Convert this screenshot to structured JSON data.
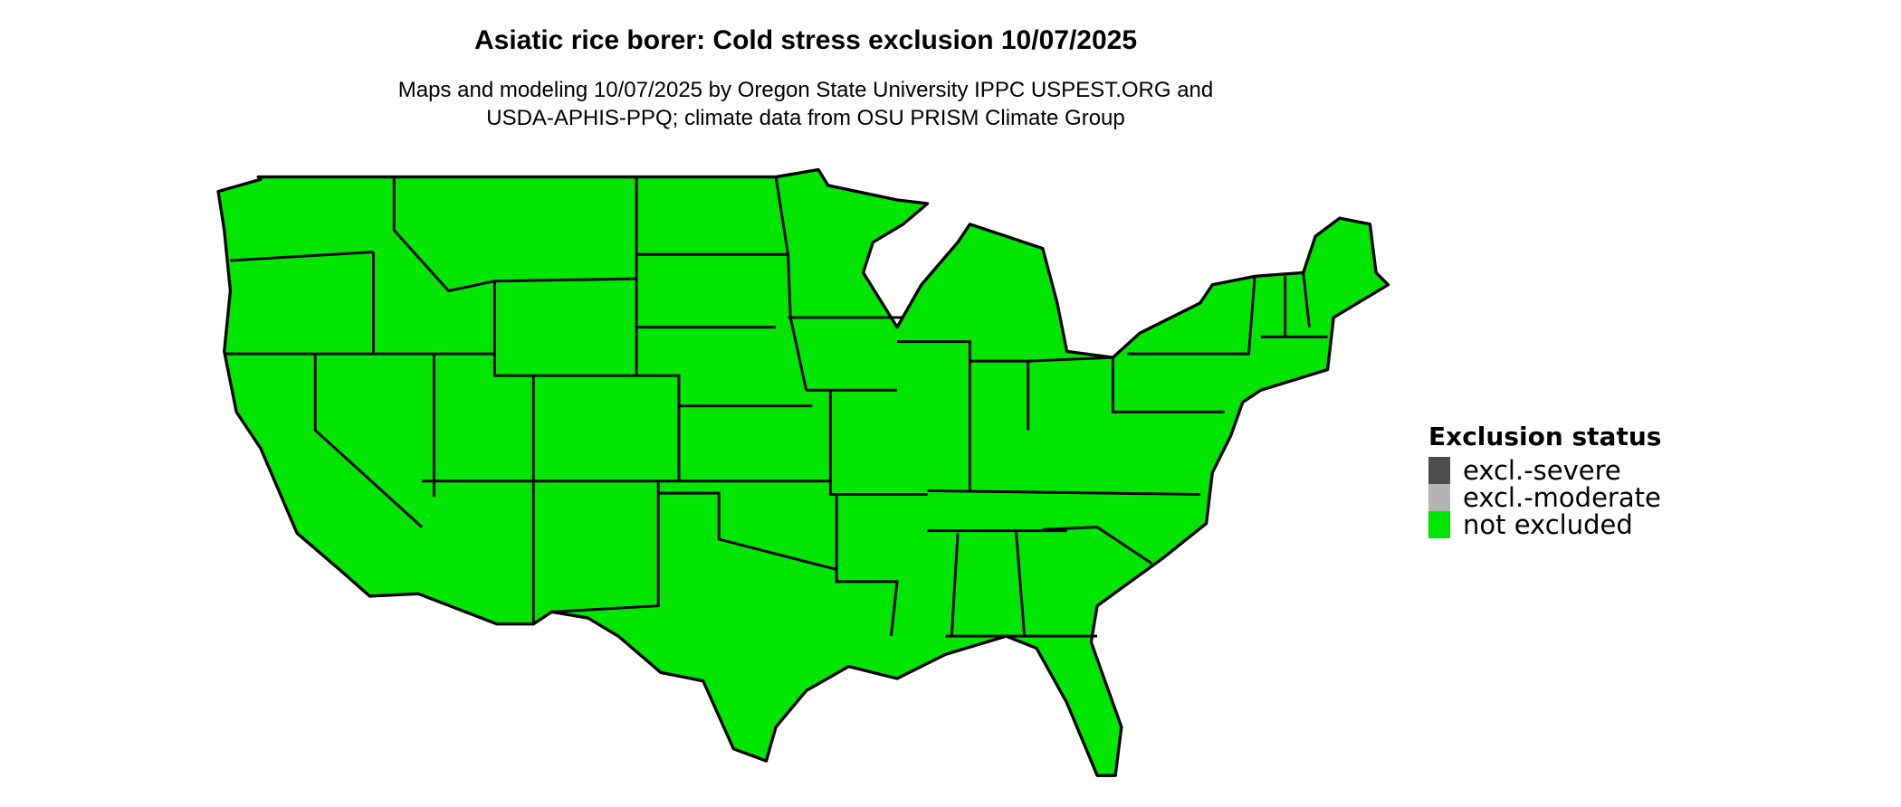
{
  "title": "Asiatic rice borer: Cold stress exclusion 10/07/2025",
  "subtitle_lines": [
    "Maps and modeling 10/07/2025 by Oregon State University IPPC USPEST.ORG and",
    "USDA-APHIS-PPQ; climate data from OSU PRISM Climate Group"
  ],
  "map": {
    "region": "Contiguous United States",
    "fill_status": "not excluded",
    "fill_color": "#00e600",
    "border_color": "#000000"
  },
  "legend": {
    "title": "Exclusion status",
    "items": [
      {
        "label": "excl.-severe",
        "color": "#4d4d4d"
      },
      {
        "label": "excl.-moderate",
        "color": "#b3b3b3"
      },
      {
        "label": "not excluded",
        "color": "#00e600"
      }
    ]
  }
}
